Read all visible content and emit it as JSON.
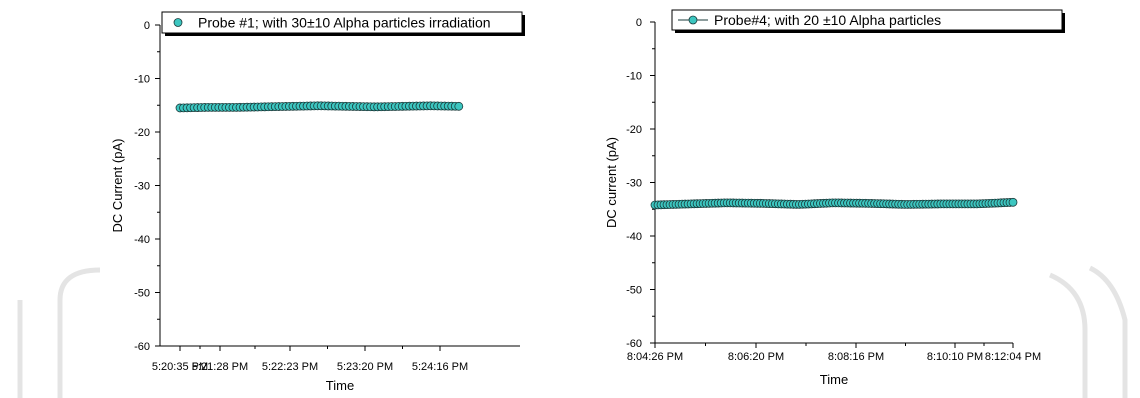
{
  "colors": {
    "marker_fill": "#3cc6c0",
    "marker_stroke": "#1a3a3a",
    "axis": "#000000",
    "watermark": "#e4e4e4"
  },
  "chart_data": [
    {
      "type": "scatter",
      "xlabel": "Time",
      "ylabel": "DC Current (pA)",
      "ylim": [
        -60,
        0
      ],
      "yticks": [
        0,
        -10,
        -20,
        -30,
        -40,
        -50,
        -60
      ],
      "xticks": [
        "5:20:35 PM",
        "5:21:28 PM",
        "5:22:23 PM",
        "5:23:20 PM",
        "5:24:16 PM"
      ],
      "legend_position": "top",
      "series": [
        {
          "name": "Probe #1; with 30±10 Alpha particles irradiation",
          "marker": "circle",
          "x_range": [
            "5:20:35 PM",
            "5:24:35 PM"
          ],
          "point_count": 80,
          "values": [
            -15.5,
            -15.4,
            -15.4,
            -15.3,
            -15.2,
            -15.1,
            -15.2,
            -15.3,
            -15.2,
            -15.1,
            -15.2
          ]
        }
      ]
    },
    {
      "type": "line",
      "xlabel": "Time",
      "ylabel": "DC current (pA)",
      "ylim": [
        -60,
        0
      ],
      "yticks": [
        0,
        -10,
        -20,
        -30,
        -40,
        -50,
        -60
      ],
      "xticks": [
        "8:04:26 PM",
        "8:06:20 PM",
        "8:08:16 PM",
        "8:10:10 PM",
        "8:12:04 PM"
      ],
      "legend_position": "top",
      "series": [
        {
          "name": "Probe#4; with 20 ±10 Alpha particles",
          "marker": "circle",
          "x_range": [
            "8:04:26 PM",
            "8:12:04 PM"
          ],
          "point_count": 120,
          "values": [
            -34.2,
            -34.0,
            -33.8,
            -33.9,
            -34.1,
            -33.8,
            -33.9,
            -34.1,
            -34.0,
            -34.0,
            -33.7
          ]
        }
      ]
    }
  ]
}
